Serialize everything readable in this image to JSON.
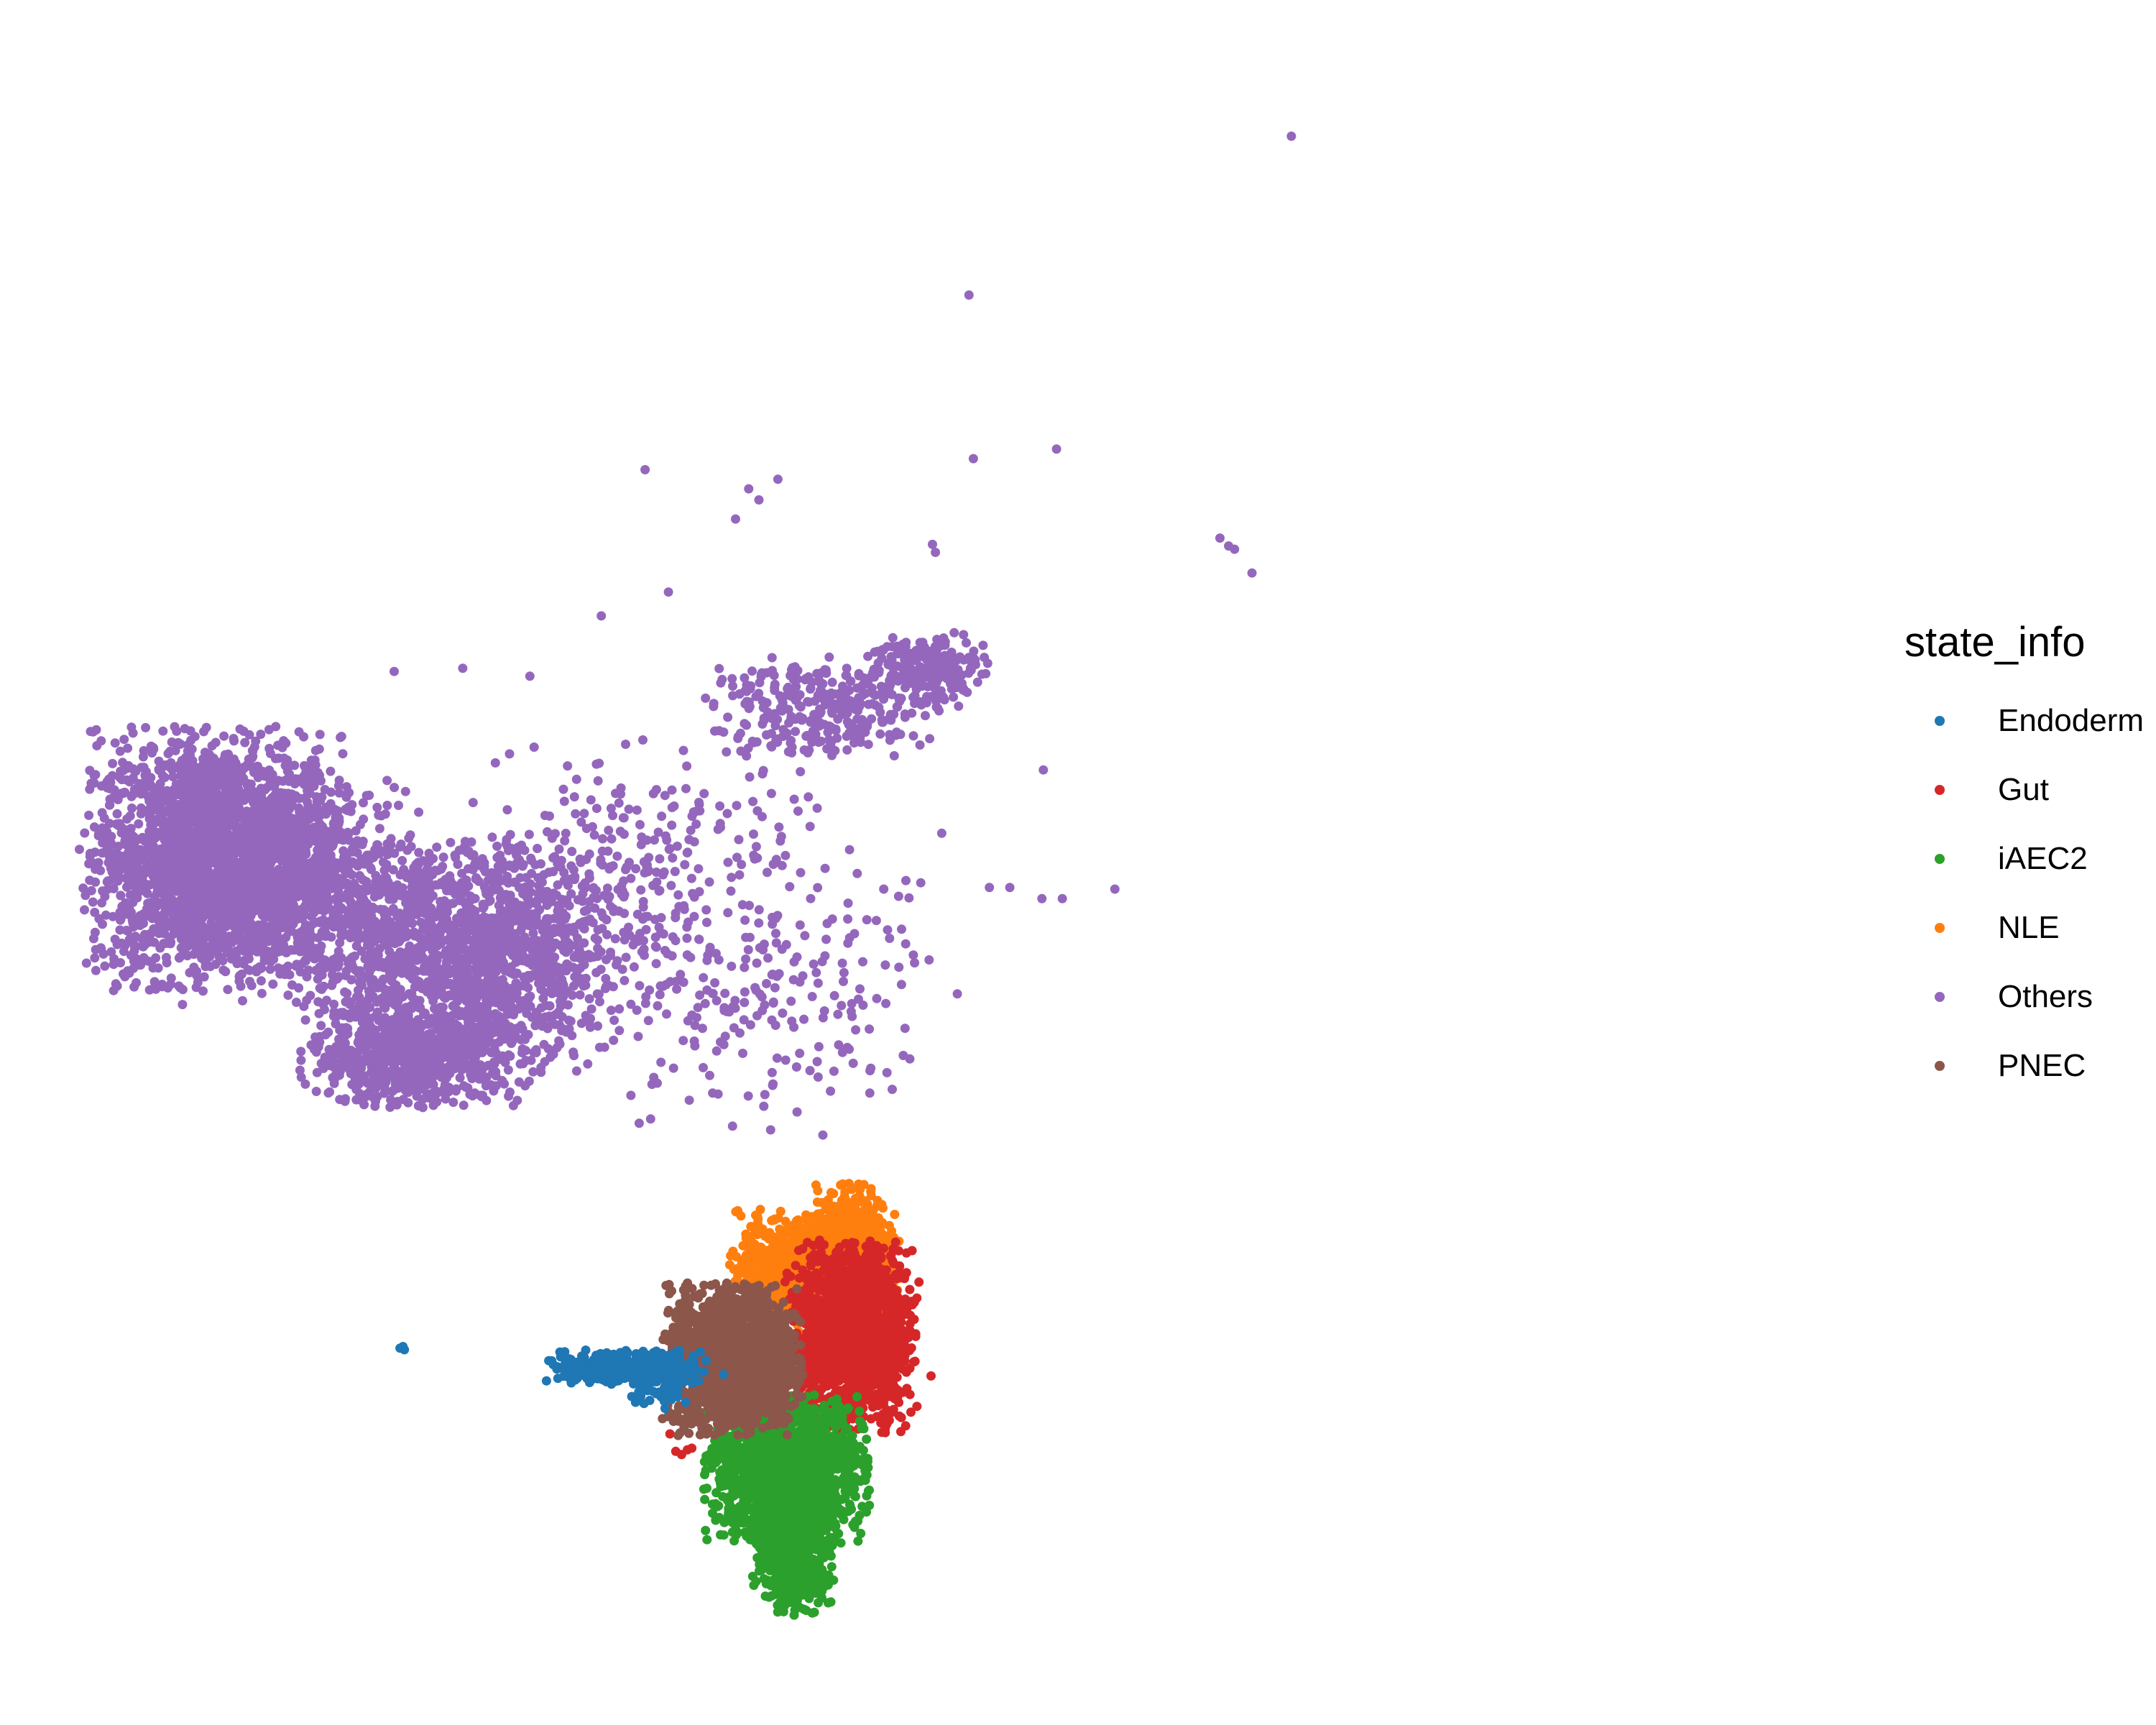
{
  "chart_data": {
    "type": "scatter",
    "title": "",
    "xlabel": "",
    "ylabel": "",
    "xlim": [
      0,
      100
    ],
    "ylim": [
      0,
      100
    ],
    "grid": false,
    "axes_visible": false,
    "legend_position": "right",
    "legend": {
      "title": "state_info",
      "items": [
        {
          "label": "Endoderm",
          "color": "#1f77b4"
        },
        {
          "label": "Gut",
          "color": "#d62728"
        },
        {
          "label": "iAEC2",
          "color": "#2ca02c"
        },
        {
          "label": "NLE",
          "color": "#ff7f0e"
        },
        {
          "label": "Others",
          "color": "#9467bd"
        },
        {
          "label": "PNEC",
          "color": "#8c564b"
        }
      ]
    },
    "series": [
      {
        "label": "Others",
        "color": "#9467bd",
        "clusters": [
          {
            "cx": 9.5,
            "cy": 50.0,
            "sx": 4.2,
            "sy": 3.8,
            "n": 2600
          },
          {
            "cx": 26.5,
            "cy": 44.0,
            "sx": 4.8,
            "sy": 3.4,
            "n": 1400
          },
          {
            "cx": 23.0,
            "cy": 37.5,
            "sx": 3.6,
            "sy": 1.5,
            "n": 700
          },
          {
            "cx": 17.5,
            "cy": 48.0,
            "sx": 3.0,
            "sy": 3.5,
            "n": 400
          },
          {
            "cx": 51.0,
            "cy": 59.5,
            "sx": 3.8,
            "sy": 1.5,
            "n": 320
          },
          {
            "cx": 58.0,
            "cy": 62.0,
            "sx": 2.0,
            "sy": 1.2,
            "n": 200
          },
          {
            "cx": 38.0,
            "cy": 48.0,
            "sx": 6.0,
            "sy": 4.5,
            "n": 380
          },
          {
            "cx": 44.0,
            "cy": 40.0,
            "sx": 6.5,
            "sy": 3.5,
            "n": 140
          },
          {
            "cx": 52.0,
            "cy": 44.0,
            "sx": 3.5,
            "sy": 3.5,
            "n": 60
          }
        ],
        "sparse_points": [
          [
            83.1,
            95.5
          ],
          [
            61.0,
            85.5
          ],
          [
            61.3,
            75.2
          ],
          [
            67.0,
            75.8
          ],
          [
            38.8,
            74.5
          ],
          [
            45.9,
            73.3
          ],
          [
            46.6,
            72.6
          ],
          [
            47.9,
            73.9
          ],
          [
            45.0,
            71.4
          ],
          [
            58.5,
            69.8
          ],
          [
            58.7,
            69.3
          ],
          [
            78.2,
            70.2
          ],
          [
            78.8,
            69.7
          ],
          [
            79.2,
            69.5
          ],
          [
            80.4,
            68.0
          ],
          [
            40.4,
            66.8
          ],
          [
            35.8,
            65.3
          ],
          [
            66.1,
            55.6
          ],
          [
            62.4,
            48.2
          ],
          [
            63.8,
            48.2
          ],
          [
            66.0,
            47.5
          ],
          [
            67.4,
            47.5
          ],
          [
            71.0,
            48.1
          ],
          [
            60.2,
            41.5
          ],
          [
            21.6,
            61.8
          ],
          [
            26.3,
            62.0
          ],
          [
            30.9,
            61.5
          ]
        ]
      },
      {
        "label": "NLE",
        "color": "#ff7f0e",
        "clusters": [
          {
            "cx": 50.5,
            "cy": 24.0,
            "sx": 2.7,
            "sy": 1.8,
            "n": 1200
          },
          {
            "cx": 53.0,
            "cy": 26.3,
            "sx": 1.2,
            "sy": 1.5,
            "n": 400
          }
        ],
        "sparse_points": [
          [
            53.8,
            29.5
          ],
          [
            53.5,
            28.8
          ]
        ]
      },
      {
        "label": "Gut",
        "color": "#d62728",
        "clusters": [
          {
            "cx": 53.0,
            "cy": 20.0,
            "sx": 2.1,
            "sy": 2.8,
            "n": 1500
          }
        ],
        "sparse_points": [
          [
            40.9,
            12.7
          ],
          [
            41.3,
            12.5
          ],
          [
            41.7,
            12.8
          ],
          [
            42.0,
            12.9
          ],
          [
            40.5,
            13.8
          ]
        ]
      },
      {
        "label": "iAEC2",
        "color": "#2ca02c",
        "clusters": [
          {
            "cx": 48.5,
            "cy": 11.5,
            "sx": 2.6,
            "sy": 2.2,
            "n": 1600
          },
          {
            "cx": 49.0,
            "cy": 7.0,
            "sx": 1.3,
            "sy": 2.1,
            "n": 700
          }
        ],
        "sparse_points": [
          [
            48.7,
            4.2
          ],
          [
            49.1,
            3.8
          ]
        ]
      },
      {
        "label": "PNEC",
        "color": "#8c564b",
        "clusters": [
          {
            "cx": 44.8,
            "cy": 18.5,
            "sx": 2.2,
            "sy": 2.2,
            "n": 1800
          }
        ],
        "sparse_points": [
          [
            42.5,
            15.2
          ]
        ]
      },
      {
        "label": "Endoderm",
        "color": "#1f77b4",
        "clusters": [
          {
            "cx": 37.5,
            "cy": 18.0,
            "sx": 2.6,
            "sy": 0.5,
            "n": 380
          },
          {
            "cx": 39.8,
            "cy": 16.5,
            "sx": 1.0,
            "sy": 0.6,
            "n": 60
          }
        ],
        "sparse_points": [
          [
            22.0,
            19.2
          ],
          [
            22.3,
            19.1
          ],
          [
            22.2,
            19.3
          ],
          [
            32.4,
            18.4
          ]
        ]
      }
    ]
  }
}
